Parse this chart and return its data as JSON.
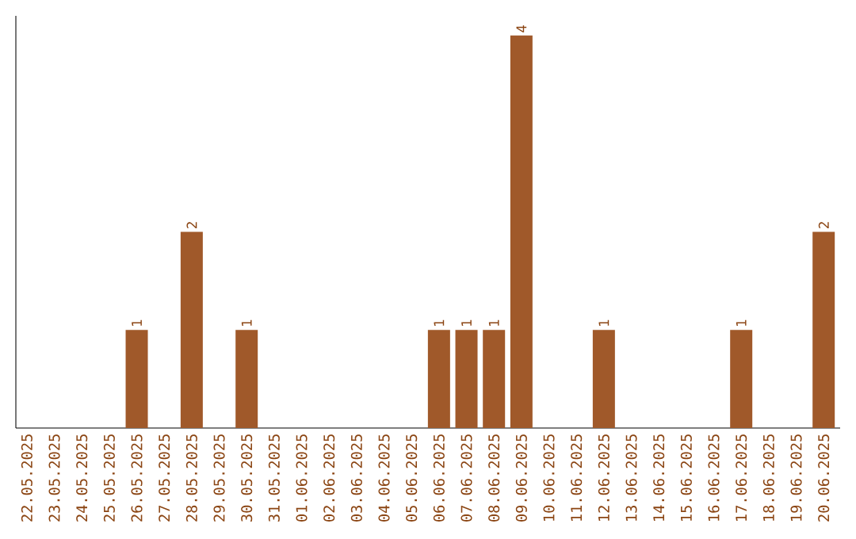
{
  "chart_data": {
    "type": "bar",
    "color": "#a0592a",
    "categories": [
      "22.05.2025",
      "23.05.2025",
      "24.05.2025",
      "25.05.2025",
      "26.05.2025",
      "27.05.2025",
      "28.05.2025",
      "29.05.2025",
      "30.05.2025",
      "31.05.2025",
      "01.06.2025",
      "02.06.2025",
      "03.06.2025",
      "04.06.2025",
      "05.06.2025",
      "06.06.2025",
      "07.06.2025",
      "08.06.2025",
      "09.06.2025",
      "10.06.2025",
      "11.06.2025",
      "12.06.2025",
      "13.06.2025",
      "14.06.2025",
      "15.06.2025",
      "16.06.2025",
      "17.06.2025",
      "18.06.2025",
      "19.06.2025",
      "20.06.2025"
    ],
    "values": [
      0,
      0,
      0,
      0,
      1,
      0,
      2,
      0,
      1,
      0,
      0,
      0,
      0,
      0,
      0,
      1,
      1,
      1,
      4,
      0,
      0,
      1,
      0,
      0,
      0,
      0,
      1,
      0,
      0,
      2
    ],
    "value_labels": [
      null,
      null,
      null,
      null,
      "1",
      null,
      "2",
      null,
      "1",
      null,
      null,
      null,
      null,
      null,
      null,
      "1",
      "1",
      "1",
      "4",
      null,
      null,
      "1",
      null,
      null,
      null,
      null,
      "1",
      null,
      null,
      "2"
    ],
    "tick_labels": "x",
    "grid": false
  }
}
